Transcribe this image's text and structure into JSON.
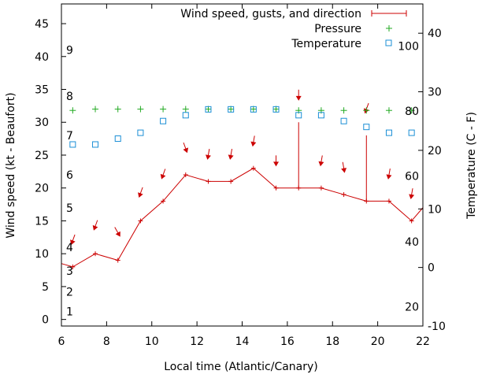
{
  "chart_data": {
    "type": "line",
    "xlabel": "Local time (Atlantic/Canary)",
    "ylabel_left": "Wind speed (kt - Beaufort)",
    "ylabel_right": "Temperature (C - F)",
    "x_range": [
      6,
      22
    ],
    "x_ticks": [
      6,
      8,
      10,
      12,
      14,
      16,
      18,
      20,
      22
    ],
    "y_left_range": [
      -1,
      48
    ],
    "y_left_ticks": [
      0,
      5,
      10,
      15,
      20,
      25,
      30,
      35,
      40,
      45
    ],
    "y_right_range": [
      -10,
      45
    ],
    "y_right_ticks": [
      -10,
      0,
      10,
      20,
      30,
      40
    ],
    "beaufort_labels": [
      {
        "label": "1",
        "y": 1.2
      },
      {
        "label": "2",
        "y": 4.2
      },
      {
        "label": "3",
        "y": 7.4
      },
      {
        "label": "4",
        "y": 11.0
      },
      {
        "label": "5",
        "y": 17.0
      },
      {
        "label": "6",
        "y": 22.0
      },
      {
        "label": "7",
        "y": 28.0
      },
      {
        "label": "8",
        "y": 34.0
      },
      {
        "label": "9",
        "y": 41.0
      }
    ],
    "fahrenheit_labels": [
      {
        "label": "20",
        "c": -6.7
      },
      {
        "label": "40",
        "c": 4.4
      },
      {
        "label": "60",
        "c": 15.6
      },
      {
        "label": "80",
        "c": 26.7
      },
      {
        "label": "100",
        "c": 37.8
      }
    ],
    "legend": [
      "Wind speed, gusts, and direction",
      "Pressure",
      "Temperature"
    ],
    "legend_position": "top-right",
    "colors": {
      "wind": "#cc0000",
      "pressure": "#22aa22",
      "temperature": "#1b8fd6"
    },
    "wind": {
      "x": [
        6.0,
        6.5,
        7.5,
        8.5,
        9.5,
        10.5,
        11.5,
        12.5,
        13.5,
        14.5,
        15.5,
        16.5,
        17.5,
        18.5,
        19.5,
        20.5,
        21.5,
        22.0
      ],
      "y": [
        8.5,
        8.0,
        10.0,
        9.0,
        15.0,
        18.0,
        22.0,
        21.0,
        21.0,
        23.0,
        20.0,
        20.0,
        20.0,
        19.0,
        18.0,
        18.0,
        15.0,
        17.0
      ]
    },
    "gusts": [
      {
        "x": 16.5,
        "low": 20.0,
        "high": 30.0
      },
      {
        "x": 19.5,
        "low": 18.0,
        "high": 28.0
      }
    ],
    "direction_arrows": [
      {
        "x": 6.5,
        "y": 12.0,
        "from_deg": 20
      },
      {
        "x": 7.5,
        "y": 14.2,
        "from_deg": 20
      },
      {
        "x": 8.5,
        "y": 13.2,
        "from_deg": 330
      },
      {
        "x": 9.5,
        "y": 19.2,
        "from_deg": 20
      },
      {
        "x": 10.5,
        "y": 22.0,
        "from_deg": 20
      },
      {
        "x": 11.5,
        "y": 26.0,
        "from_deg": 340
      },
      {
        "x": 12.5,
        "y": 25.0,
        "from_deg": 10
      },
      {
        "x": 13.5,
        "y": 25.0,
        "from_deg": 10
      },
      {
        "x": 14.5,
        "y": 27.0,
        "from_deg": 10
      },
      {
        "x": 15.5,
        "y": 24.0,
        "from_deg": 0
      },
      {
        "x": 16.5,
        "y": 34.0,
        "from_deg": 0
      },
      {
        "x": 17.5,
        "y": 24.0,
        "from_deg": 10
      },
      {
        "x": 18.5,
        "y": 23.0,
        "from_deg": 350
      },
      {
        "x": 19.5,
        "y": 32.0,
        "from_deg": 20
      },
      {
        "x": 20.5,
        "y": 22.0,
        "from_deg": 10
      },
      {
        "x": 21.5,
        "y": 19.0,
        "from_deg": 10
      }
    ],
    "pressure": {
      "x": [
        6.5,
        7.5,
        8.5,
        9.5,
        10.5,
        11.5,
        12.5,
        13.5,
        14.5,
        15.5,
        16.5,
        17.5,
        18.5,
        19.5,
        20.5,
        21.5
      ],
      "y": [
        31.8,
        32.0,
        32.0,
        32.0,
        32.0,
        32.0,
        32.0,
        32.0,
        32.0,
        32.0,
        31.8,
        31.8,
        31.8,
        31.8,
        31.8,
        31.8
      ]
    },
    "temperature": {
      "x": [
        6.5,
        7.5,
        8.5,
        9.5,
        10.5,
        11.5,
        12.5,
        13.5,
        14.5,
        15.5,
        16.5,
        17.5,
        18.5,
        19.5,
        20.5,
        21.5
      ],
      "y": [
        21.0,
        21.0,
        22.0,
        23.0,
        25.0,
        26.0,
        27.0,
        27.0,
        27.0,
        27.0,
        26.0,
        26.0,
        25.0,
        24.0,
        23.0,
        23.0
      ]
    }
  }
}
